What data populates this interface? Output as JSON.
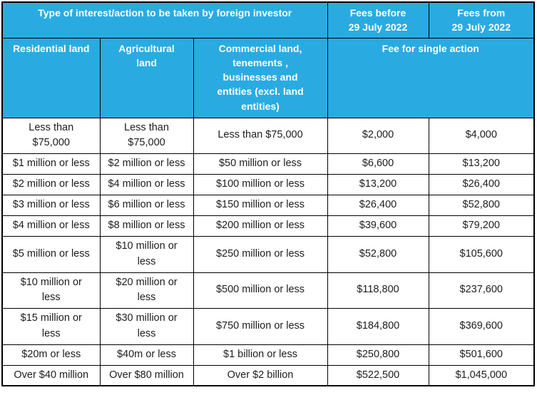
{
  "page": {
    "background_color": "#ffffff"
  },
  "table": {
    "accent_color": "#29ABE2",
    "border_color": "#000000",
    "header_text_color": "#ffffff",
    "body_text_color": "#1d1d1d",
    "header_row1": {
      "type_col": "Type of interest/action to be taken by foreign investor",
      "fees_before": "Fees before\n29 July 2022",
      "fees_from": "Fees from\n29 July 2022"
    },
    "header_row2": {
      "residential": "Residential land",
      "agricultural": "Agricultural\nland",
      "commercial": "Commercial land,\ntenements ,\nbusinesses and\nentities (excl. land\nentities)",
      "fee_single_action": "Fee for single action"
    },
    "rows": [
      [
        "Less than\n$75,000",
        "Less than\n$75,000",
        "Less than $75,000",
        "$2,000",
        "$4,000"
      ],
      [
        "$1 million or less",
        "$2 million or less",
        "$50 million or less",
        "$6,600",
        "$13,200"
      ],
      [
        "$2 million or less",
        "$4 million or less",
        "$100 million or less",
        "$13,200",
        "$26,400"
      ],
      [
        "$3 million or less",
        "$6 million or less",
        "$150 million or less",
        "$26,400",
        "$52,800"
      ],
      [
        "$4 million or less",
        "$8 million or less",
        "$200 million or less",
        "$39,600",
        "$79,200"
      ],
      [
        "$5 million or less",
        "$10 million or\nless",
        "$250 million or less",
        "$52,800",
        "$105,600"
      ],
      [
        "$10 million or\nless",
        "$20 million or\nless",
        "$500 million or less",
        "$118,800",
        "$237,600"
      ],
      [
        "$15 million or\nless",
        "$30 million or\nless",
        "$750 million or less",
        "$184,800",
        "$369,600"
      ],
      [
        "$20m or less",
        "$40m or less",
        "$1 billion or less",
        "$250,800",
        "$501,600"
      ],
      [
        "Over $40 million",
        "Over $80 million",
        "Over $2 billion",
        "$522,500",
        "$1,045,000"
      ]
    ]
  }
}
